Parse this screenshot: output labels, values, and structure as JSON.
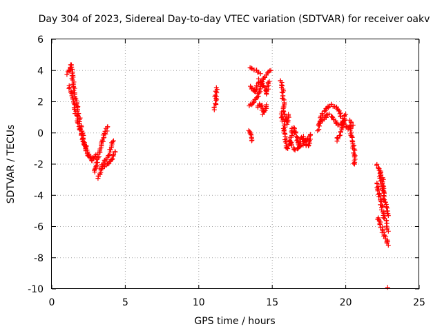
{
  "chart_data": {
    "type": "scatter",
    "title": "Day 304 of 2023, Sidereal Day-to-day VTEC variation (SDTVAR) for receiver oakv",
    "xlabel": "GPS time / hours",
    "ylabel": "SDTVAR / TECUs",
    "xlim": [
      0,
      25
    ],
    "ylim": [
      -10,
      6
    ],
    "xticks": [
      0,
      5,
      10,
      15,
      20,
      25
    ],
    "yticks": [
      -10,
      -8,
      -6,
      -4,
      -2,
      0,
      2,
      4,
      6
    ],
    "grid": true,
    "marker": "+",
    "color": "#ff0000",
    "segments": [
      {
        "x": [
          1.1,
          1.3,
          1.5,
          1.8,
          2.1,
          2.4,
          2.7,
          3.0
        ],
        "y": [
          3.8,
          4.4,
          2.8,
          1.2,
          -0.2,
          -1.2,
          -1.8,
          -1.4
        ]
      },
      {
        "x": [
          1.15,
          1.4,
          1.7,
          2.0,
          2.3,
          2.6
        ],
        "y": [
          3.0,
          2.3,
          1.0,
          0.0,
          -0.9,
          -1.6
        ]
      },
      {
        "x": [
          2.9,
          3.0,
          3.2,
          3.4,
          3.6,
          3.8
        ],
        "y": [
          -2.5,
          -2.0,
          -1.3,
          -0.6,
          -0.1,
          0.4
        ]
      },
      {
        "x": [
          3.1,
          3.3,
          3.5,
          3.8,
          4.1,
          4.3
        ],
        "y": [
          -2.9,
          -2.5,
          -2.2,
          -2.0,
          -1.6,
          -1.2
        ]
      },
      {
        "x": [
          3.3,
          3.6,
          3.9,
          4.2
        ],
        "y": [
          -2.3,
          -1.9,
          -1.3,
          -0.5
        ]
      },
      {
        "x": [
          11.1,
          11.15,
          11.2
        ],
        "y": [
          1.5,
          2.2,
          2.9
        ]
      },
      {
        "x": [
          13.4,
          13.5,
          13.6
        ],
        "y": [
          0.2,
          -0.1,
          -0.5
        ]
      },
      {
        "x": [
          13.5,
          13.7,
          14.0,
          14.3,
          14.6,
          14.9
        ],
        "y": [
          1.7,
          2.0,
          2.3,
          3.2,
          3.7,
          4.0
        ]
      },
      {
        "x": [
          13.5,
          13.8,
          14.1,
          14.4,
          14.6,
          14.8
        ],
        "y": [
          3.0,
          2.6,
          3.4,
          3.0,
          2.5,
          3.3
        ]
      },
      {
        "x": [
          13.5,
          13.7,
          14.0,
          14.2
        ],
        "y": [
          4.2,
          4.1,
          4.0,
          3.8
        ]
      },
      {
        "x": [
          14.0,
          14.2,
          14.4,
          14.6
        ],
        "y": [
          1.6,
          1.9,
          1.2,
          1.8
        ]
      },
      {
        "x": [
          15.6,
          15.7,
          15.8,
          16.0,
          16.1
        ],
        "y": [
          3.4,
          2.7,
          1.5,
          0.6,
          1.2
        ]
      },
      {
        "x": [
          15.6,
          15.8,
          16.0,
          16.2,
          16.4,
          16.6
        ],
        "y": [
          1.3,
          0.5,
          -1.0,
          -0.7,
          0.3,
          0.0
        ]
      },
      {
        "x": [
          16.2,
          16.5,
          16.8,
          17.1,
          17.4,
          17.6
        ],
        "y": [
          -0.5,
          -1.1,
          -0.9,
          -0.8,
          -0.3,
          -0.1
        ]
      },
      {
        "x": [
          16.5,
          16.8,
          17.1,
          17.4,
          17.6
        ],
        "y": [
          0.3,
          -0.8,
          -0.2,
          -0.9,
          -0.4
        ]
      },
      {
        "x": [
          18.1,
          18.4,
          18.7,
          19.0,
          19.3,
          19.6,
          19.9,
          20.2,
          20.5
        ],
        "y": [
          0.2,
          1.2,
          1.6,
          1.8,
          1.7,
          1.3,
          0.6,
          0.3,
          0.5
        ]
      },
      {
        "x": [
          18.2,
          18.5,
          18.8,
          19.1,
          19.4,
          19.7,
          19.9
        ],
        "y": [
          0.6,
          0.9,
          1.2,
          1.0,
          0.6,
          0.5,
          0.8
        ]
      },
      {
        "x": [
          19.4,
          19.6,
          19.8,
          20.0
        ],
        "y": [
          -0.5,
          0.0,
          0.6,
          1.2
        ]
      },
      {
        "x": [
          20.3,
          20.4,
          20.5,
          20.6,
          20.6
        ],
        "y": [
          0.8,
          -0.1,
          -0.8,
          -1.5,
          -2.0
        ]
      },
      {
        "x": [
          22.1,
          22.3,
          22.5,
          22.7,
          22.9
        ],
        "y": [
          -2.0,
          -2.5,
          -3.5,
          -4.6,
          -5.3
        ]
      },
      {
        "x": [
          22.1,
          22.3,
          22.5,
          22.7,
          22.9
        ],
        "y": [
          -3.2,
          -4.0,
          -4.9,
          -5.6,
          -6.3
        ]
      },
      {
        "x": [
          22.2,
          22.4,
          22.6,
          22.8,
          22.9
        ],
        "y": [
          -5.4,
          -6.0,
          -6.5,
          -6.9,
          -7.2
        ]
      },
      {
        "x": [
          22.3,
          22.5,
          22.6
        ],
        "y": [
          -2.4,
          -3.0,
          -3.8
        ]
      },
      {
        "x": [
          22.85
        ],
        "y": [
          -9.9
        ]
      }
    ]
  }
}
